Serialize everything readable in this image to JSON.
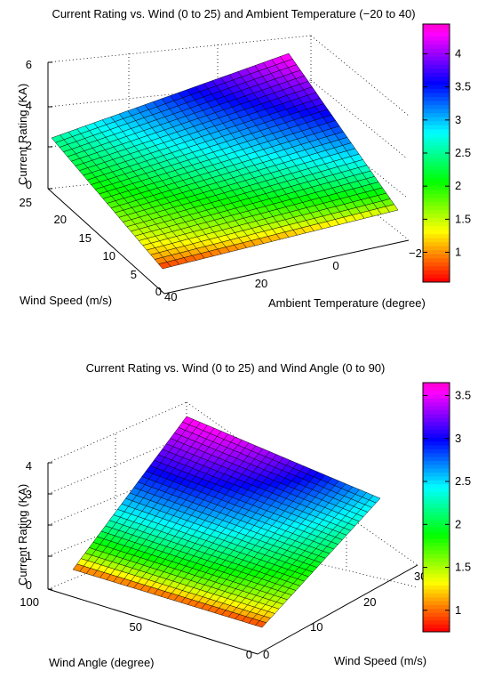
{
  "chart_data": [
    {
      "type": "surface",
      "title": "Current Rating vs. Wind (0 to 25) and Ambient Temperature (−20 to 40)",
      "zlabel": "Current Rating (KA)",
      "xlabel": "Ambient Temperature (degree)",
      "ylabel": "Wind Speed (m/s)",
      "x_ticks": [
        "−2",
        "0",
        "20",
        "40"
      ],
      "y_ticks": [
        "0",
        "5",
        "10",
        "15",
        "20",
        "25"
      ],
      "z_ticks": [
        "0",
        "2",
        "4",
        "6"
      ],
      "xlim": [
        -20,
        40
      ],
      "ylim": [
        0,
        25
      ],
      "zlim": [
        0,
        6
      ],
      "grid": true,
      "colormap": "hsv",
      "colorbar_ticks": [
        "1",
        "1.5",
        "2",
        "2.5",
        "3",
        "3.5",
        "4"
      ],
      "colorbar_range": [
        0.55,
        4.45
      ],
      "corner_values": {
        "wind0_temp40": 0.6,
        "wind0_tempm20": 1.2,
        "wind25_temp40": 2.5,
        "wind25_tempm20": 4.4
      }
    },
    {
      "type": "surface",
      "title": "Current Rating vs. Wind (0 to 25) and Wind Angle (0 to 90)",
      "zlabel": "Current Rating (KA)",
      "xlabel": "Wind Angle (degree)",
      "ylabel": "Wind Speed (m/s)",
      "x_ticks": [
        "0",
        "50",
        "100"
      ],
      "y_ticks": [
        "0",
        "10",
        "20",
        "30"
      ],
      "z_ticks": [
        "0",
        "1",
        "2",
        "3",
        "4"
      ],
      "xlim": [
        0,
        100
      ],
      "ylim": [
        0,
        30
      ],
      "zlim": [
        0,
        4
      ],
      "grid": true,
      "colormap": "hsv",
      "colorbar_ticks": [
        "1",
        "1.5",
        "2",
        "2.5",
        "3",
        "3.5"
      ],
      "colorbar_range": [
        0.75,
        3.65
      ],
      "corner_values": {
        "wind0_angle90": 0.75,
        "wind0_angle0": 0.75,
        "wind25_angle90": 3.6,
        "wind25_angle0": 2.5
      }
    }
  ]
}
